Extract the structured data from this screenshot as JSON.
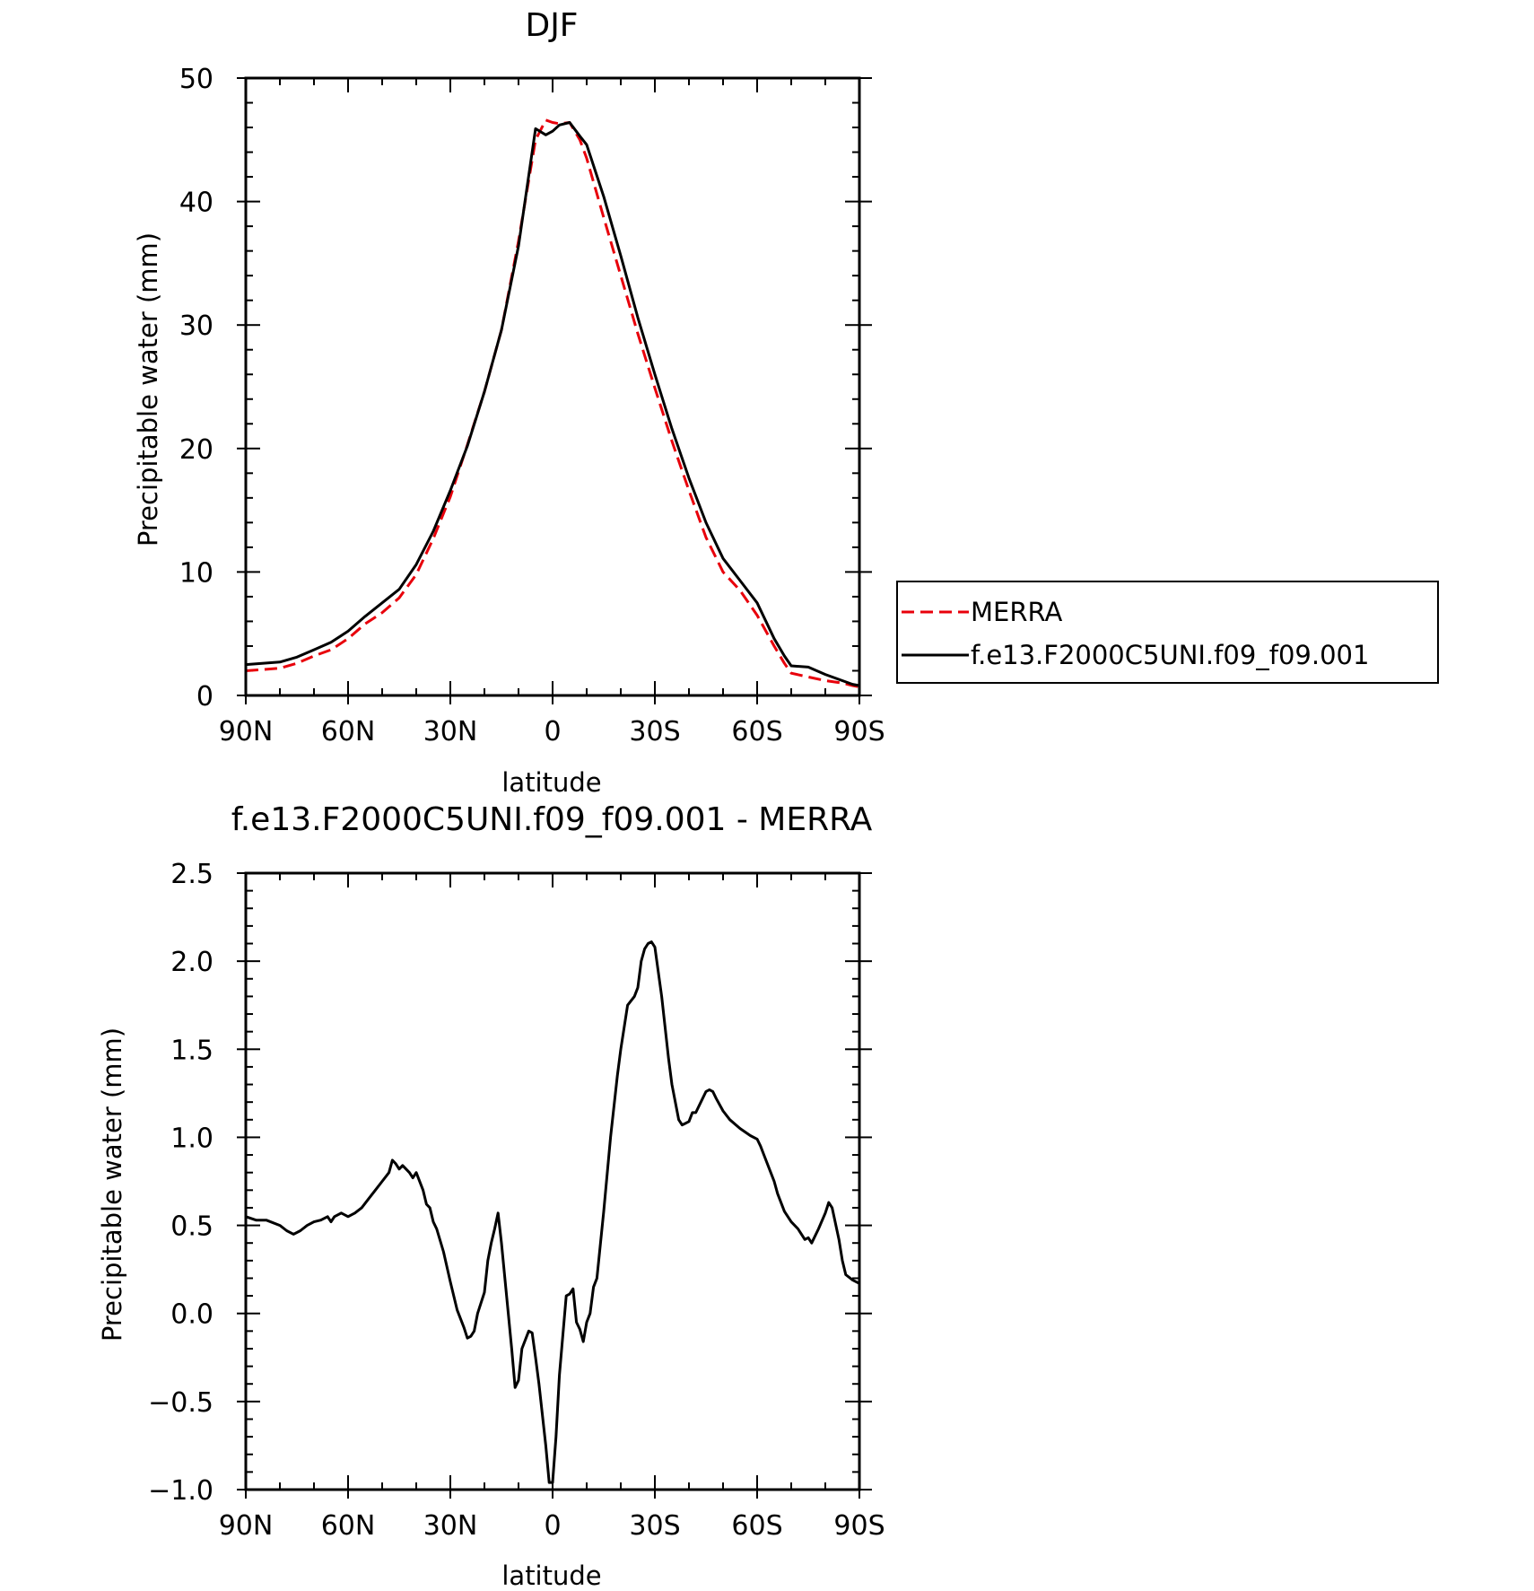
{
  "chart_data": [
    {
      "type": "line",
      "title": "DJF",
      "xlabel": "latitude",
      "ylabel": "Precipitable water (mm)",
      "xlim": [
        90,
        -90
      ],
      "ylim": [
        0,
        50
      ],
      "x_ticks": [
        90,
        60,
        30,
        0,
        -30,
        -60,
        -90
      ],
      "x_tick_labels": [
        "90N",
        "60N",
        "30N",
        "0",
        "30S",
        "60S",
        "90S"
      ],
      "y_ticks": [
        0,
        10,
        20,
        30,
        40,
        50
      ],
      "y_tick_labels": [
        "0",
        "10",
        "20",
        "30",
        "40",
        "50"
      ],
      "legend_position": "right",
      "series": [
        {
          "name": "MERRA",
          "color": "#e8000b",
          "dash": "dashed",
          "x": [
            90,
            80,
            75,
            70,
            65,
            60,
            55,
            50,
            45,
            40,
            35,
            30,
            25,
            20,
            15,
            10,
            5,
            2,
            0,
            -2,
            -5,
            -8,
            -10,
            -15,
            -20,
            -25,
            -30,
            -35,
            -40,
            -45,
            -50,
            -55,
            -60,
            -65,
            -68,
            -70,
            -75,
            -80,
            -85,
            -88,
            -90
          ],
          "values": [
            2.0,
            2.2,
            2.6,
            3.2,
            3.7,
            4.6,
            5.8,
            6.7,
            7.9,
            9.8,
            12.7,
            16.1,
            20.3,
            24.6,
            29.6,
            36.8,
            45.0,
            46.6,
            46.4,
            46.3,
            46.4,
            45.0,
            43.5,
            38.7,
            34.0,
            29.3,
            24.9,
            20.6,
            16.6,
            12.8,
            10.0,
            8.5,
            6.5,
            4.0,
            2.6,
            1.8,
            1.5,
            1.2,
            1.0,
            0.8,
            0.7
          ]
        },
        {
          "name": "f.e13.F2000C5UNI.f09_f09.001",
          "color": "#000000",
          "dash": "solid",
          "x": [
            90,
            80,
            75,
            70,
            65,
            60,
            55,
            50,
            45,
            40,
            35,
            30,
            25,
            20,
            15,
            10,
            5,
            2,
            0,
            -2,
            -5,
            -8,
            -10,
            -15,
            -20,
            -25,
            -30,
            -35,
            -40,
            -45,
            -50,
            -55,
            -60,
            -65,
            -68,
            -70,
            -75,
            -80,
            -85,
            -88,
            -90
          ],
          "values": [
            2.5,
            2.7,
            3.1,
            3.7,
            4.3,
            5.2,
            6.4,
            7.5,
            8.6,
            10.6,
            13.3,
            16.6,
            20.2,
            24.6,
            29.6,
            36.4,
            45.9,
            45.4,
            45.7,
            46.2,
            46.4,
            45.3,
            44.6,
            40.4,
            35.6,
            30.6,
            26.0,
            21.6,
            17.6,
            14.0,
            11.1,
            9.3,
            7.5,
            4.6,
            3.2,
            2.4,
            2.3,
            1.7,
            1.2,
            0.9,
            0.8
          ]
        }
      ]
    },
    {
      "type": "line",
      "title": "f.e13.F2000C5UNI.f09_f09.001 - MERRA",
      "xlabel": "latitude",
      "ylabel": "Precipitable water (mm)",
      "xlim": [
        90,
        -90
      ],
      "ylim": [
        -1.0,
        2.5
      ],
      "x_ticks": [
        90,
        60,
        30,
        0,
        -30,
        -60,
        -90
      ],
      "x_tick_labels": [
        "90N",
        "60N",
        "30N",
        "0",
        "30S",
        "60S",
        "90S"
      ],
      "y_ticks": [
        -1.0,
        -0.5,
        0.0,
        0.5,
        1.0,
        1.5,
        2.0,
        2.5
      ],
      "y_tick_labels": [
        "−1.0",
        "−0.5",
        "0.0",
        "0.5",
        "1.0",
        "1.5",
        "2.0",
        "2.5"
      ],
      "series": [
        {
          "color": "#000000",
          "dash": "solid",
          "x": [
            90,
            87,
            84,
            80,
            78,
            76,
            74,
            72,
            70,
            68,
            66,
            65,
            64,
            62,
            60,
            58,
            56,
            54,
            52,
            50,
            48,
            47,
            46,
            45,
            44,
            42,
            41,
            40,
            38,
            37,
            36,
            35,
            34,
            32,
            30,
            28,
            26,
            25,
            24,
            23,
            22,
            20,
            19,
            18,
            17,
            16,
            15,
            13,
            12,
            11,
            10,
            9,
            7,
            6,
            5,
            4,
            2,
            1,
            0,
            -1,
            -2,
            -4,
            -5,
            -6,
            -7,
            -8,
            -9,
            -10,
            -11,
            -12,
            -13,
            -15,
            -17,
            -19,
            -20,
            -22,
            -24,
            -25,
            -26,
            -27,
            -28,
            -29,
            -30,
            -32,
            -34,
            -35,
            -37,
            -38,
            -40,
            -41,
            -42,
            -44,
            -45,
            -46,
            -47,
            -48,
            -50,
            -52,
            -55,
            -58,
            -60,
            -61,
            -62,
            -64,
            -65,
            -66,
            -68,
            -70,
            -72,
            -73,
            -74,
            -75,
            -76,
            -78,
            -80,
            -81,
            -82,
            -84,
            -85,
            -86,
            -88,
            -90
          ],
          "values": [
            0.55,
            0.53,
            0.53,
            0.5,
            0.47,
            0.45,
            0.47,
            0.5,
            0.52,
            0.53,
            0.55,
            0.52,
            0.55,
            0.57,
            0.55,
            0.57,
            0.6,
            0.65,
            0.7,
            0.75,
            0.8,
            0.87,
            0.85,
            0.82,
            0.84,
            0.8,
            0.77,
            0.8,
            0.7,
            0.62,
            0.6,
            0.52,
            0.48,
            0.35,
            0.18,
            0.02,
            -0.08,
            -0.14,
            -0.13,
            -0.1,
            0.0,
            0.12,
            0.3,
            0.4,
            0.48,
            0.57,
            0.4,
            0.0,
            -0.2,
            -0.42,
            -0.38,
            -0.2,
            -0.1,
            -0.11,
            -0.25,
            -0.4,
            -0.75,
            -0.96,
            -0.96,
            -0.7,
            -0.35,
            0.1,
            0.11,
            0.14,
            -0.05,
            -0.09,
            -0.16,
            -0.05,
            0.0,
            0.15,
            0.2,
            0.58,
            1.0,
            1.35,
            1.5,
            1.75,
            1.8,
            1.85,
            2.0,
            2.07,
            2.1,
            2.11,
            2.08,
            1.8,
            1.45,
            1.3,
            1.1,
            1.07,
            1.09,
            1.14,
            1.14,
            1.22,
            1.26,
            1.27,
            1.26,
            1.22,
            1.15,
            1.1,
            1.05,
            1.01,
            0.99,
            0.95,
            0.9,
            0.8,
            0.75,
            0.68,
            0.58,
            0.52,
            0.48,
            0.45,
            0.42,
            0.43,
            0.4,
            0.48,
            0.57,
            0.63,
            0.6,
            0.42,
            0.3,
            0.22,
            0.19,
            0.17
          ]
        }
      ]
    }
  ]
}
